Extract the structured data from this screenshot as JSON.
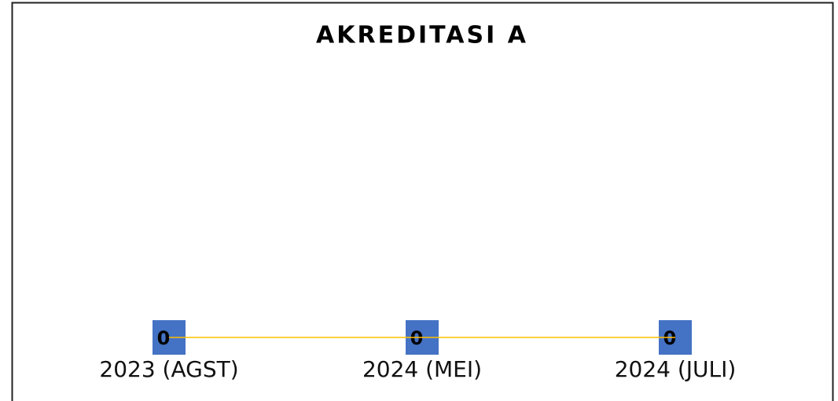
{
  "chart_data": {
    "type": "line",
    "title": "AKREDITASI A",
    "categories": [
      "2023 (AGST)",
      "2024 (MEI)",
      "2024 (JULI)"
    ],
    "series": [
      {
        "name": "AKREDITASI A",
        "color": "#ffc000",
        "values": [
          0,
          0,
          0
        ]
      }
    ],
    "marker_color": "#4472c4",
    "data_labels": true,
    "legend": false,
    "grid": false
  }
}
